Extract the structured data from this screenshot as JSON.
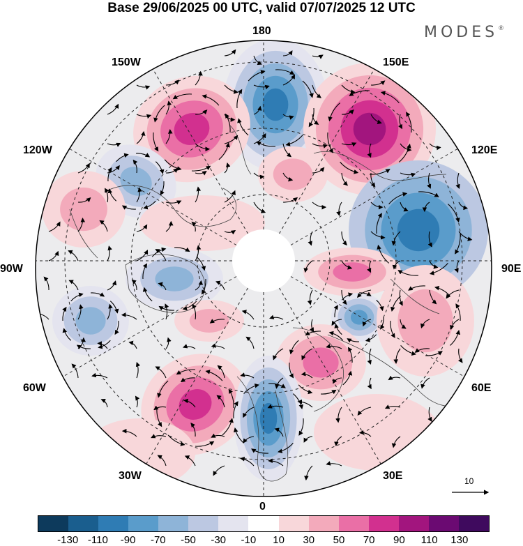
{
  "title": "Base 29/06/2025 00 UTC, valid 07/07/2025 12 UTC",
  "brand": {
    "text": "MODES",
    "mark": "®"
  },
  "longitude_labels": {
    "n180": "180",
    "w150": "150W",
    "e150": "150E",
    "w120": "120W",
    "e120": "120E",
    "w90": "90W",
    "e90": "90E",
    "w60": "60W",
    "e60": "60E",
    "w30": "30W",
    "e30": "30E",
    "zero": "0"
  },
  "reference_vector": {
    "label": "10"
  },
  "colorbar": {
    "colors": [
      "#0d3a5c",
      "#1a5e8e",
      "#2f7cb4",
      "#5a9ccb",
      "#8eb4d8",
      "#bcc8e2",
      "#e4e4ef",
      "#ffffff",
      "#f8d7da",
      "#f3aabb",
      "#ea6fa6",
      "#d2308f",
      "#a2157e",
      "#6b0a72",
      "#3f0a5e"
    ],
    "labels": [
      "-130",
      "-110",
      "-90",
      "-70",
      "-50",
      "-30",
      "-10",
      "10",
      "30",
      "50",
      "70",
      "90",
      "110",
      "130"
    ]
  }
}
